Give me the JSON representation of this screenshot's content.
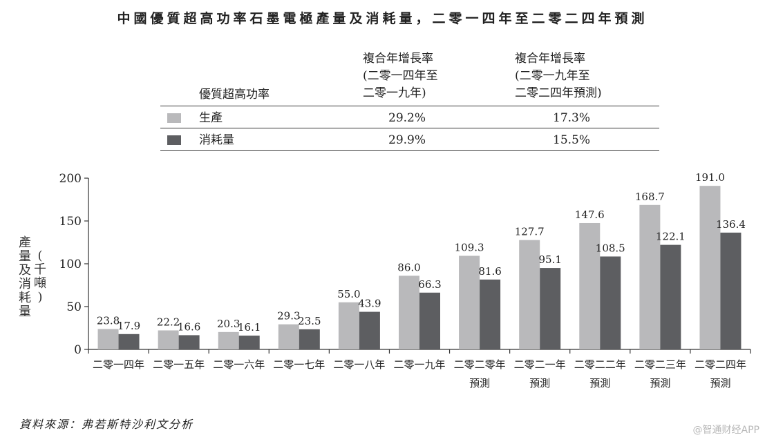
{
  "title": "中國優質超高功率石墨電極產量及消耗量，二零一四年至二零二四年預測",
  "table": {
    "row_header": "優質超高功率",
    "col1": [
      "複合年增長率",
      "(二零一四年至",
      "二零一九年)"
    ],
    "col2": [
      "複合年增長率",
      "(二零一九年至",
      "二零二四年預測)"
    ],
    "rows": [
      {
        "label": "生產",
        "v1": "29.2%",
        "v2": "17.3%"
      },
      {
        "label": "消耗量",
        "v1": "29.9%",
        "v2": "15.5%"
      }
    ]
  },
  "chart_data": {
    "type": "bar",
    "categories": [
      "二零一四年",
      "二零一五年",
      "二零一六年",
      "二零一七年",
      "二零一八年",
      "二零一九年",
      "二零二零年\n預測",
      "二零二一年\n預測",
      "二零二二年\n預測",
      "二零二三年\n預測",
      "二零二四年\n預測"
    ],
    "series": [
      {
        "name": "生產",
        "color": "#b9b9bb",
        "values": [
          23.8,
          22.2,
          20.3,
          29.3,
          55.0,
          86.0,
          109.3,
          127.7,
          147.6,
          168.7,
          191.0
        ]
      },
      {
        "name": "消耗量",
        "color": "#5d5e61",
        "values": [
          17.9,
          16.6,
          16.1,
          23.5,
          43.9,
          66.3,
          81.6,
          95.1,
          108.5,
          122.1,
          136.4
        ]
      }
    ],
    "ylabel": "產量及消耗量\n(千噸)",
    "ylim": [
      0,
      200
    ],
    "yticks": [
      0,
      50,
      100,
      150,
      200
    ]
  },
  "source": "資料來源：弗若斯特沙利文分析",
  "watermark": "@智通财经APP"
}
